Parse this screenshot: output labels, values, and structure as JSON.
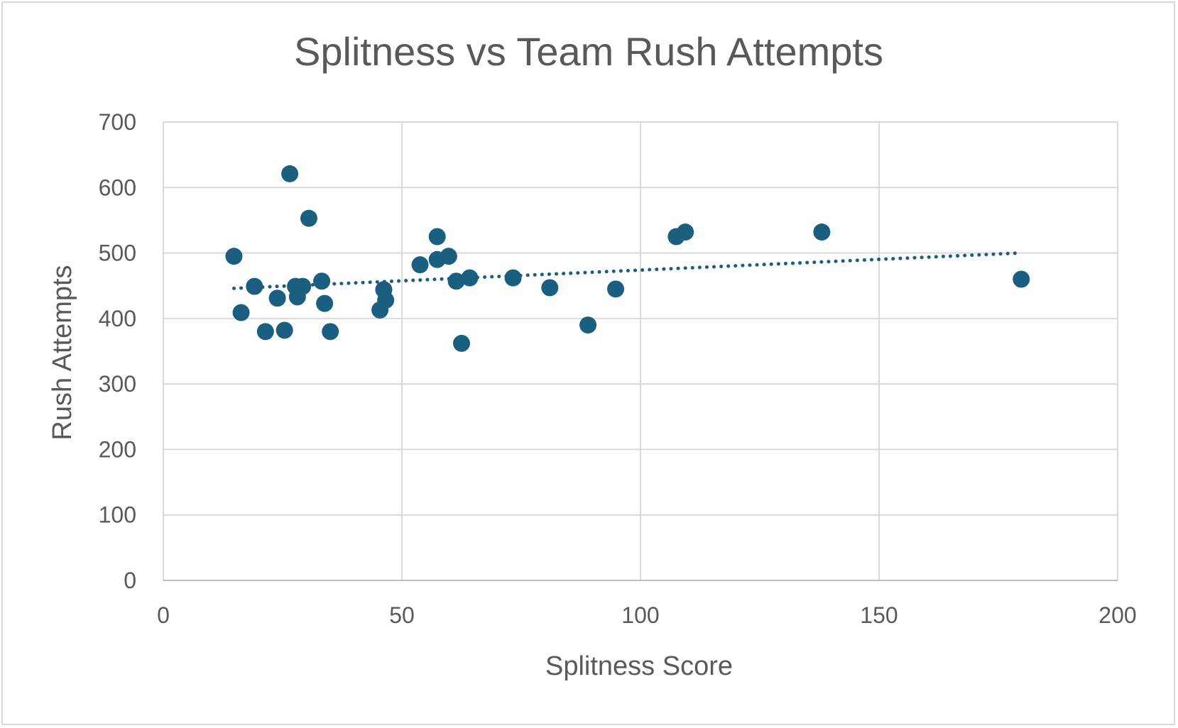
{
  "chart_data": {
    "type": "scatter",
    "title": "Splitness vs Team Rush Attempts",
    "xlabel": "Splitness Score",
    "ylabel": "Rush Attempts",
    "xlim": [
      0,
      200
    ],
    "ylim": [
      0,
      700
    ],
    "x_ticks": [
      "0",
      "50",
      "100",
      "150",
      "200"
    ],
    "y_ticks": [
      "0",
      "100",
      "200",
      "300",
      "400",
      "500",
      "600",
      "700"
    ],
    "grid": true,
    "legend": "none",
    "marker_color": "#1a5e80",
    "trendline": {
      "type": "linear",
      "style": "dotted",
      "color": "#1a5e80",
      "start": [
        14.8,
        446
      ],
      "end": [
        179.5,
        500
      ]
    },
    "points": [
      {
        "x": 14.8,
        "y": 495
      },
      {
        "x": 16.3,
        "y": 409
      },
      {
        "x": 19.1,
        "y": 449
      },
      {
        "x": 21.4,
        "y": 380
      },
      {
        "x": 23.9,
        "y": 431
      },
      {
        "x": 25.4,
        "y": 382
      },
      {
        "x": 26.5,
        "y": 621
      },
      {
        "x": 27.7,
        "y": 449
      },
      {
        "x": 28.1,
        "y": 433
      },
      {
        "x": 29.2,
        "y": 449
      },
      {
        "x": 30.5,
        "y": 553
      },
      {
        "x": 33.2,
        "y": 457
      },
      {
        "x": 33.8,
        "y": 423
      },
      {
        "x": 35.0,
        "y": 380
      },
      {
        "x": 45.4,
        "y": 413
      },
      {
        "x": 46.2,
        "y": 444
      },
      {
        "x": 46.6,
        "y": 428
      },
      {
        "x": 53.8,
        "y": 482
      },
      {
        "x": 57.4,
        "y": 525
      },
      {
        "x": 57.4,
        "y": 490
      },
      {
        "x": 59.8,
        "y": 495
      },
      {
        "x": 61.4,
        "y": 457
      },
      {
        "x": 62.5,
        "y": 362
      },
      {
        "x": 64.2,
        "y": 462
      },
      {
        "x": 73.3,
        "y": 462
      },
      {
        "x": 81.0,
        "y": 447
      },
      {
        "x": 89.0,
        "y": 390
      },
      {
        "x": 94.8,
        "y": 445
      },
      {
        "x": 107.5,
        "y": 525
      },
      {
        "x": 109.4,
        "y": 532
      },
      {
        "x": 138.0,
        "y": 532
      },
      {
        "x": 179.8,
        "y": 460
      }
    ]
  }
}
